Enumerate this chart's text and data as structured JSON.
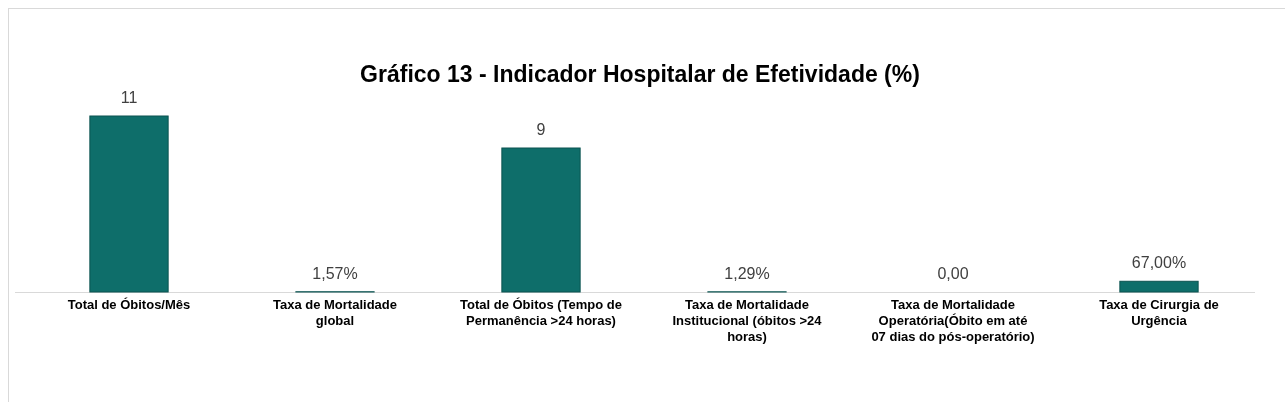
{
  "chart_data": {
    "type": "bar",
    "title": "Gráfico 13 - Indicador Hospitalar de Efetividade (%)",
    "categories": [
      "Total de Óbitos/Mês",
      "Taxa de Mortalidade global",
      "Total de Óbitos (Tempo de Permanência >24 horas)",
      "Taxa de Mortalidade Institucional (óbitos >24 horas)",
      "Taxa de Mortalidade Operatória(Óbito em até 07 dias do pós-operatório)",
      "Taxa de Cirurgia de Urgência"
    ],
    "values": [
      11,
      0.0157,
      9,
      0.0129,
      0,
      0.67
    ],
    "value_labels": [
      "11",
      "1,57%",
      "9",
      "1,29%",
      "0,00",
      "67,00%"
    ],
    "color": "#0e6e6a"
  }
}
